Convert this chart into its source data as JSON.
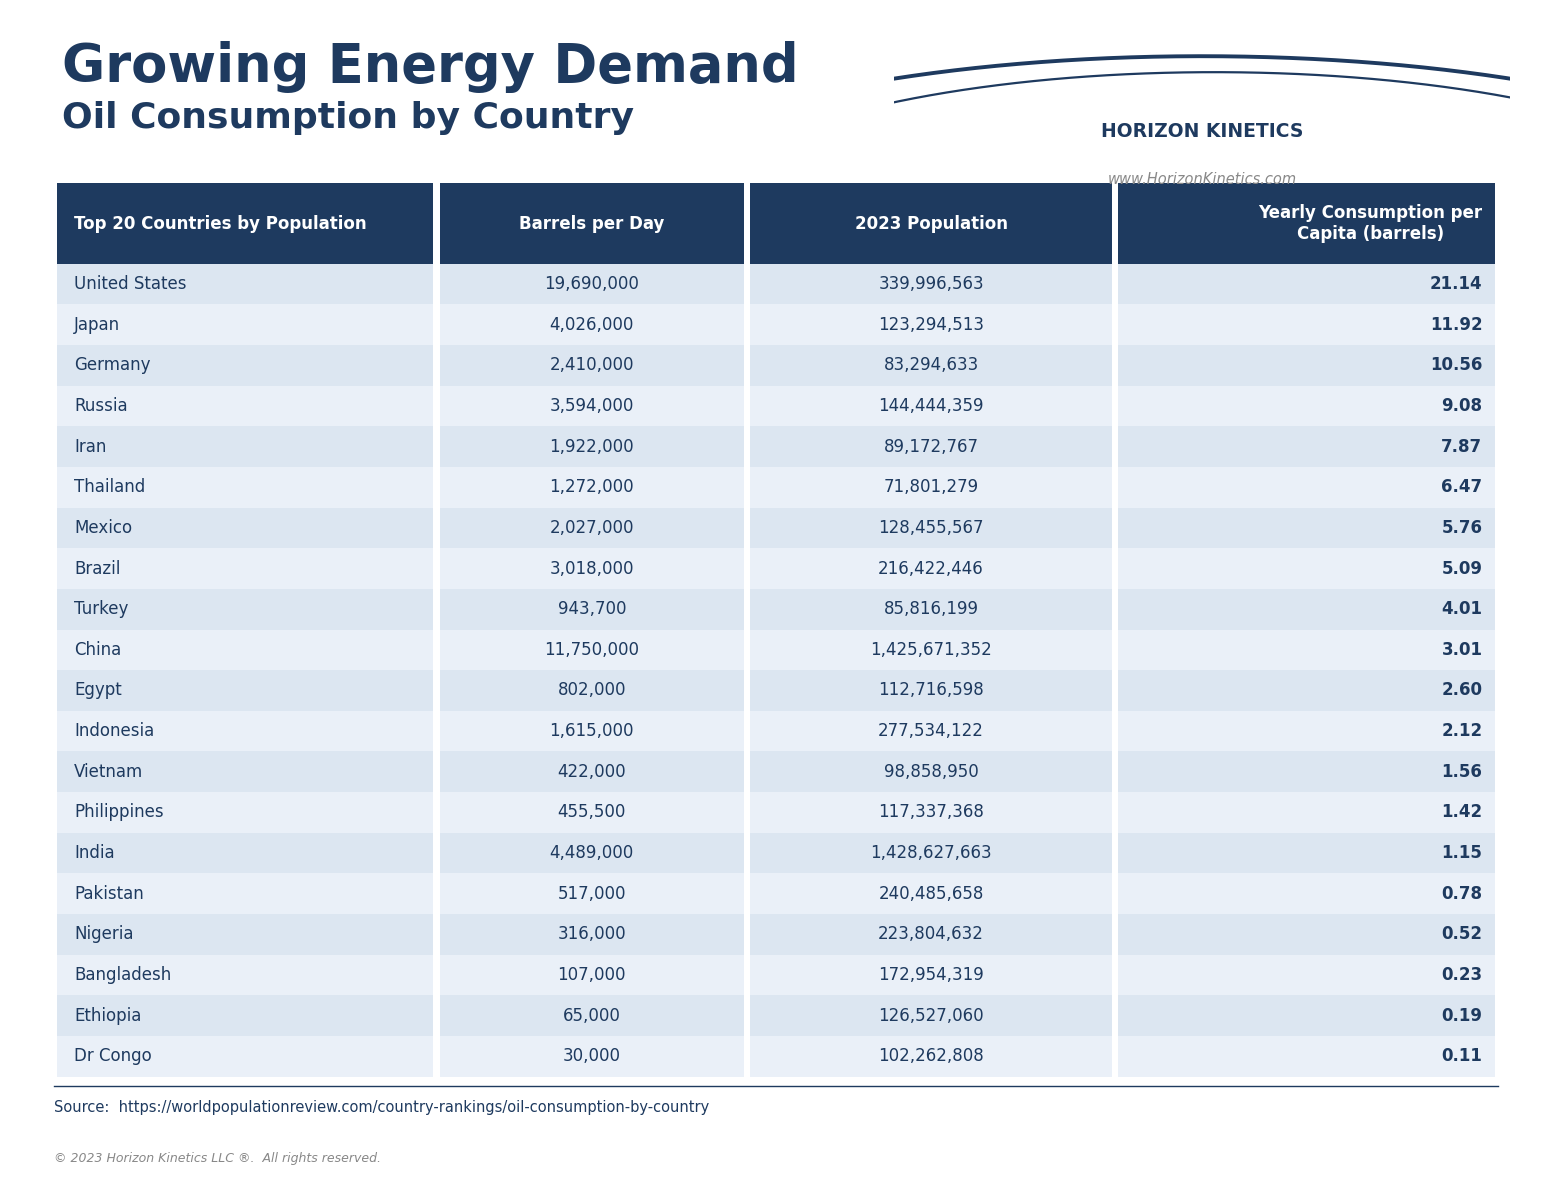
{
  "title_line1": "Growing Energy Demand",
  "title_line2": "Oil Consumption by Country",
  "logo_text": "HORIZON KINETICS",
  "logo_url": "www.HorizonKinetics.com",
  "source_text": "Source:  https://worldpopulationreview.com/country-rankings/oil-consumption-by-country",
  "copyright_text": "© 2023 Horizon Kinetics LLC ®.  All rights reserved.",
  "col_headers": [
    "Top 20 Countries by Population",
    "Barrels per Day",
    "2023 Population",
    "Yearly Consumption per\nCapita (barrels)"
  ],
  "rows": [
    [
      "United States",
      "19,690,000",
      "339,996,563",
      "21.14"
    ],
    [
      "Japan",
      "4,026,000",
      "123,294,513",
      "11.92"
    ],
    [
      "Germany",
      "2,410,000",
      "83,294,633",
      "10.56"
    ],
    [
      "Russia",
      "3,594,000",
      "144,444,359",
      "9.08"
    ],
    [
      "Iran",
      "1,922,000",
      "89,172,767",
      "7.87"
    ],
    [
      "Thailand",
      "1,272,000",
      "71,801,279",
      "6.47"
    ],
    [
      "Mexico",
      "2,027,000",
      "128,455,567",
      "5.76"
    ],
    [
      "Brazil",
      "3,018,000",
      "216,422,446",
      "5.09"
    ],
    [
      "Turkey",
      "943,700",
      "85,816,199",
      "4.01"
    ],
    [
      "China",
      "11,750,000",
      "1,425,671,352",
      "3.01"
    ],
    [
      "Egypt",
      "802,000",
      "112,716,598",
      "2.60"
    ],
    [
      "Indonesia",
      "1,615,000",
      "277,534,122",
      "2.12"
    ],
    [
      "Vietnam",
      "422,000",
      "98,858,950",
      "1.56"
    ],
    [
      "Philippines",
      "455,500",
      "117,337,368",
      "1.42"
    ],
    [
      "India",
      "4,489,000",
      "1,428,627,663",
      "1.15"
    ],
    [
      "Pakistan",
      "517,000",
      "240,485,658",
      "0.78"
    ],
    [
      "Nigeria",
      "316,000",
      "223,804,632",
      "0.52"
    ],
    [
      "Bangladesh",
      "107,000",
      "172,954,319",
      "0.23"
    ],
    [
      "Ethiopia",
      "65,000",
      "126,527,060",
      "0.19"
    ],
    [
      "Dr Congo",
      "30,000",
      "102,262,808",
      "0.11"
    ]
  ],
  "header_bg_color": "#1e3a5f",
  "header_text_color": "#ffffff",
  "row_bg_even": "#dce6f1",
  "row_bg_odd": "#eaf0f8",
  "row_text_color": "#1e3a5f",
  "title_color": "#1e3a5f",
  "bg_color": "#ffffff",
  "logo_color": "#1e3a5f",
  "url_color": "#888888",
  "source_color": "#1e3a5f",
  "copyright_color": "#888888"
}
